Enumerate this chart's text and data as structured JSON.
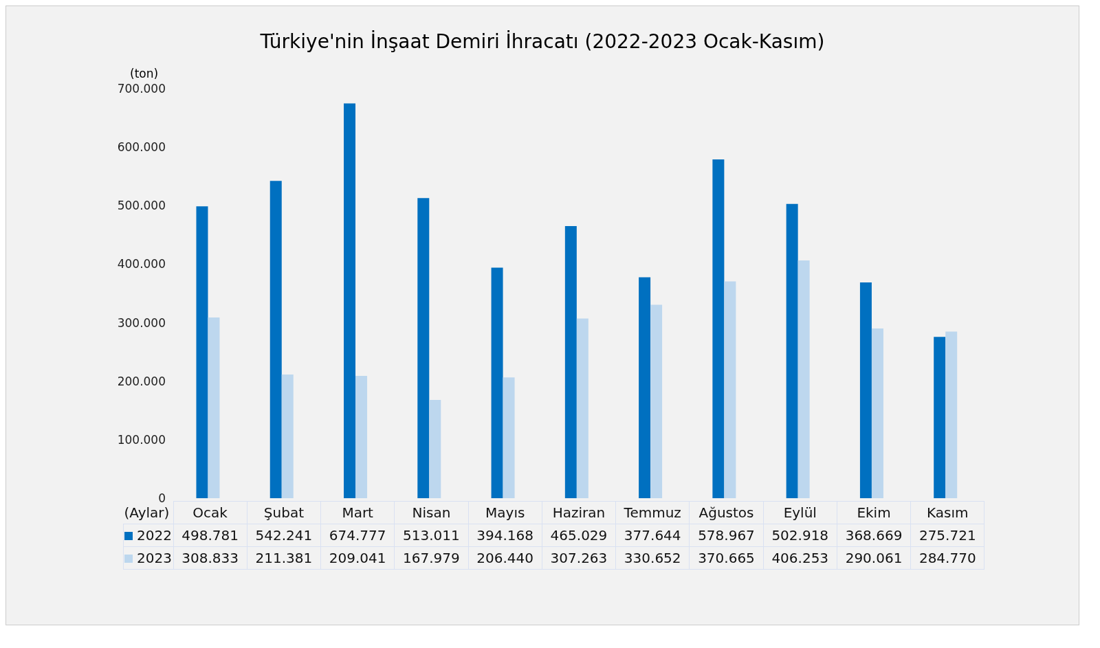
{
  "chart_data": {
    "type": "bar",
    "title": "Türkiye'nin İnşaat Demiri İhracatı (2022-2023 Ocak-Kasım)",
    "ylabel": "(ton)",
    "xlabel": "(Aylar)",
    "categories": [
      "Ocak",
      "Şubat",
      "Mart",
      "Nisan",
      "Mayıs",
      "Haziran",
      "Temmuz",
      "Ağustos",
      "Eylül",
      "Ekim",
      "Kasım"
    ],
    "series": [
      {
        "name": "2022",
        "color": "#0070c0",
        "values": [
          498781,
          542241,
          674777,
          513011,
          394168,
          465029,
          377644,
          578967,
          502918,
          368669,
          275721
        ],
        "value_labels": [
          "498.781",
          "542.241",
          "674.777",
          "513.011",
          "394.168",
          "465.029",
          "377.644",
          "578.967",
          "502.918",
          "368.669",
          "275.721"
        ]
      },
      {
        "name": "2023",
        "color": "#bdd7ee",
        "values": [
          308833,
          211381,
          209041,
          167979,
          206440,
          307263,
          330652,
          370665,
          406253,
          290061,
          284770
        ],
        "value_labels": [
          "308.833",
          "211.381",
          "209.041",
          "167.979",
          "206.440",
          "307.263",
          "330.652",
          "370.665",
          "406.253",
          "290.061",
          "284.770"
        ]
      }
    ],
    "ylim": [
      0,
      700000
    ],
    "yticks": [
      0,
      {
        "value": 100000,
        "label": "100.000"
      },
      {
        "value": 200000,
        "label": "200.000"
      },
      {
        "value": 300000,
        "label": "300.000"
      },
      {
        "value": 400000,
        "label": "400.000"
      },
      {
        "value": 500000,
        "label": "500.000"
      },
      {
        "value": 600000,
        "label": "600.000"
      },
      {
        "value": 700000,
        "label": "700.000"
      }
    ],
    "legend": "bottom"
  }
}
